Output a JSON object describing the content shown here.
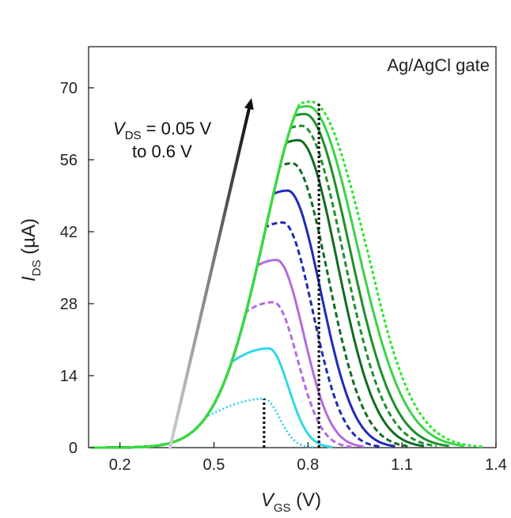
{
  "chart_data": {
    "type": "line",
    "title": "",
    "corner_label": "Ag/AgCl gate",
    "xlabel": {
      "symbol": "V",
      "subscript": "GS",
      "unit": " (V)"
    },
    "ylabel": {
      "symbol": "I",
      "subscript": "DS",
      "unit": " (µA)"
    },
    "xlim": [
      0.1,
      1.4
    ],
    "ylim": [
      0,
      78
    ],
    "x_ticks": [
      {
        "value": 0.2,
        "label": "0.2"
      },
      {
        "value": 0.5,
        "label": "0.5"
      },
      {
        "value": 0.8,
        "label": "0.8"
      },
      {
        "value": 1.1,
        "label": "1.1"
      },
      {
        "value": 1.4,
        "label": "1.4"
      }
    ],
    "y_ticks": [
      {
        "value": 0,
        "label": "0"
      },
      {
        "value": 14,
        "label": "14"
      },
      {
        "value": 28,
        "label": "28"
      },
      {
        "value": 42,
        "label": "42"
      },
      {
        "value": 56,
        "label": "56"
      },
      {
        "value": 70,
        "label": "70"
      }
    ],
    "grid": false,
    "annotation": {
      "line1_symbol": "V",
      "line1_subscript": "DS",
      "line1_rest": " = 0.05 V",
      "line2": "to 0.6 V",
      "arrow_from": [
        0.36,
        0
      ],
      "arrow_to": [
        0.62,
        68
      ]
    },
    "vlines": [
      {
        "x": 0.66,
        "y_top": 9.5
      },
      {
        "x": 0.835,
        "y_top": 67
      }
    ],
    "series": [
      {
        "vds": 0.05,
        "peak_x": 0.66,
        "peak_y": 9.5,
        "end_x": 0.82,
        "color": "#33d6e6",
        "dash": "2,3"
      },
      {
        "vds": 0.1,
        "peak_x": 0.675,
        "peak_y": 19.3,
        "end_x": 0.88,
        "color": "#33d6e6",
        "dash": ""
      },
      {
        "vds": 0.15,
        "peak_x": 0.69,
        "peak_y": 28.3,
        "end_x": 0.94,
        "color": "#b36be0",
        "dash": "7,4"
      },
      {
        "vds": 0.2,
        "peak_x": 0.7,
        "peak_y": 36.5,
        "end_x": 0.98,
        "color": "#b36be0",
        "dash": ""
      },
      {
        "vds": 0.25,
        "peak_x": 0.72,
        "peak_y": 43.8,
        "end_x": 1.03,
        "color": "#1f2bb8",
        "dash": "7,4"
      },
      {
        "vds": 0.3,
        "peak_x": 0.735,
        "peak_y": 50.0,
        "end_x": 1.08,
        "color": "#1f2bb8",
        "dash": ""
      },
      {
        "vds": 0.35,
        "peak_x": 0.75,
        "peak_y": 55.3,
        "end_x": 1.12,
        "color": "#136b22",
        "dash": "7,4"
      },
      {
        "vds": 0.4,
        "peak_x": 0.77,
        "peak_y": 59.8,
        "end_x": 1.17,
        "color": "#136b22",
        "dash": ""
      },
      {
        "vds": 0.45,
        "peak_x": 0.78,
        "peak_y": 62.6,
        "end_x": 1.21,
        "color": "#1f8f2a",
        "dash": "7,4"
      },
      {
        "vds": 0.5,
        "peak_x": 0.79,
        "peak_y": 64.9,
        "end_x": 1.25,
        "color": "#1f8f2a",
        "dash": ""
      },
      {
        "vds": 0.55,
        "peak_x": 0.8,
        "peak_y": 66.4,
        "end_x": 1.3,
        "color": "#3bd24a",
        "dash": ""
      },
      {
        "vds": 0.6,
        "peak_x": 0.81,
        "peak_y": 67.3,
        "end_x": 1.36,
        "color": "#2ee62e",
        "dash": "4,3"
      }
    ]
  }
}
